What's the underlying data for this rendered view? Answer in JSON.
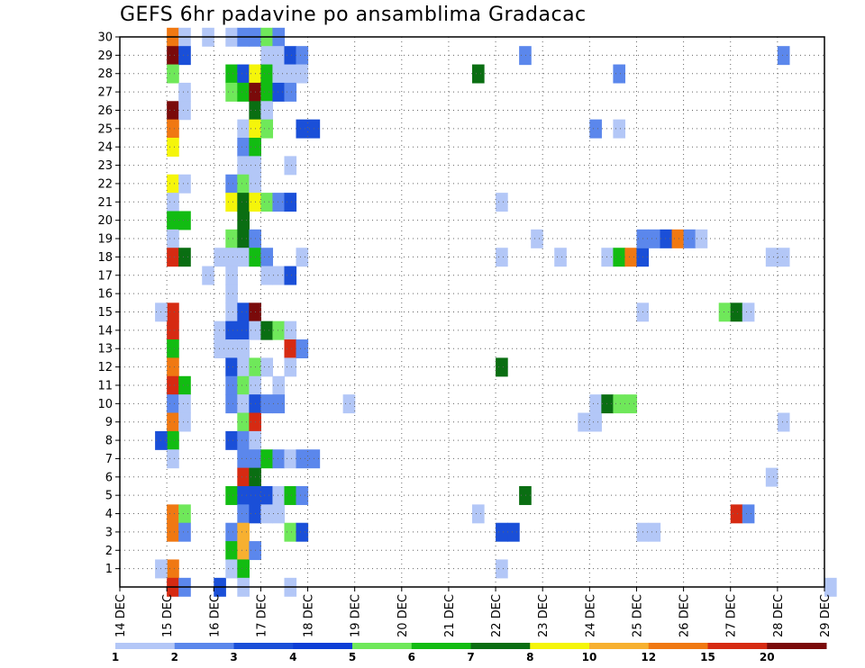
{
  "chart_data": {
    "type": "heatmap",
    "title": "GEFS 6hr padavine po ansamblima Gradacac",
    "xlabel": "",
    "ylabel": "",
    "x_tick_labels": [
      "14 DEC",
      "15 DEC",
      "16 DEC",
      "17 DEC",
      "18 DEC",
      "19 DEC",
      "20 DEC",
      "21 DEC",
      "22 DEC",
      "23 DEC",
      "24 DEC",
      "25 DEC",
      "26 DEC",
      "27 DEC",
      "28 DEC",
      "29 DEC"
    ],
    "y_tick_labels": [
      "1",
      "2",
      "3",
      "4",
      "5",
      "6",
      "7",
      "8",
      "9",
      "10",
      "11",
      "12",
      "13",
      "14",
      "15",
      "16",
      "17",
      "18",
      "19",
      "20",
      "21",
      "22",
      "23",
      "24",
      "25",
      "26",
      "27",
      "28",
      "29",
      "30"
    ],
    "x_range_days": [
      14,
      29
    ],
    "y_range": [
      0,
      30
    ],
    "grid": true,
    "colorbar": {
      "labels": [
        "1",
        "2",
        "3",
        "4",
        "5",
        "6",
        "7",
        "8",
        "10",
        "12",
        "15",
        "20"
      ],
      "colors": [
        "#b3c7f7",
        "#5b87ec",
        "#1a4fd8",
        "#0d3ed6",
        "#6fe85a",
        "#12bc12",
        "#0a6e12",
        "#f5f50a",
        "#f7b030",
        "#f07812",
        "#d62a12",
        "#7a0a0a"
      ]
    },
    "cells": [
      [
        15.0,
        30,
        9
      ],
      [
        15.0,
        29,
        11
      ],
      [
        15.0,
        28,
        4
      ],
      [
        15.0,
        26,
        11
      ],
      [
        15.0,
        25,
        9
      ],
      [
        15.0,
        24,
        7
      ],
      [
        15.0,
        22,
        7
      ],
      [
        15.0,
        21,
        0
      ],
      [
        15.0,
        20,
        5
      ],
      [
        15.0,
        19,
        0
      ],
      [
        15.0,
        18,
        10
      ],
      [
        15.0,
        15,
        10
      ],
      [
        15.0,
        14,
        10
      ],
      [
        15.0,
        13,
        5
      ],
      [
        15.0,
        12,
        9
      ],
      [
        15.0,
        11,
        10
      ],
      [
        15.0,
        10,
        1
      ],
      [
        15.0,
        9,
        9
      ],
      [
        15.0,
        8,
        5
      ],
      [
        15.0,
        7,
        0
      ],
      [
        15.0,
        4,
        9
      ],
      [
        15.0,
        3,
        9
      ],
      [
        15.0,
        1,
        9
      ],
      [
        15.0,
        0,
        10
      ],
      [
        15.25,
        30,
        0
      ],
      [
        15.25,
        29,
        2
      ],
      [
        15.25,
        27,
        0
      ],
      [
        15.25,
        26,
        0
      ],
      [
        15.25,
        22,
        0
      ],
      [
        15.25,
        20,
        5
      ],
      [
        15.25,
        18,
        6
      ],
      [
        15.25,
        11,
        5
      ],
      [
        15.25,
        10,
        0
      ],
      [
        15.25,
        9,
        0
      ],
      [
        15.25,
        4,
        4
      ],
      [
        15.25,
        3,
        1
      ],
      [
        15.25,
        0,
        1
      ],
      [
        14.75,
        15,
        0
      ],
      [
        14.75,
        8,
        2
      ],
      [
        14.75,
        1,
        0
      ],
      [
        15.75,
        30,
        0
      ],
      [
        15.75,
        17,
        0
      ],
      [
        16.0,
        18,
        0
      ],
      [
        16.0,
        14,
        0
      ],
      [
        16.0,
        13,
        0
      ],
      [
        16.0,
        0,
        2
      ],
      [
        16.25,
        30,
        0
      ],
      [
        16.25,
        28,
        5
      ],
      [
        16.25,
        27,
        4
      ],
      [
        16.25,
        22,
        1
      ],
      [
        16.25,
        21,
        7
      ],
      [
        16.25,
        19,
        4
      ],
      [
        16.25,
        18,
        0
      ],
      [
        16.25,
        17,
        0
      ],
      [
        16.25,
        16,
        0
      ],
      [
        16.25,
        15,
        0
      ],
      [
        16.25,
        14,
        2
      ],
      [
        16.25,
        13,
        0
      ],
      [
        16.25,
        12,
        2
      ],
      [
        16.25,
        11,
        1
      ],
      [
        16.25,
        10,
        1
      ],
      [
        16.25,
        8,
        2
      ],
      [
        16.25,
        5,
        5
      ],
      [
        16.25,
        3,
        1
      ],
      [
        16.25,
        2,
        5
      ],
      [
        16.25,
        1,
        0
      ],
      [
        16.5,
        30,
        1
      ],
      [
        16.5,
        28,
        2
      ],
      [
        16.5,
        27,
        5
      ],
      [
        16.5,
        25,
        0
      ],
      [
        16.5,
        24,
        1
      ],
      [
        16.5,
        23,
        0
      ],
      [
        16.5,
        22,
        4
      ],
      [
        16.5,
        21,
        6
      ],
      [
        16.5,
        20,
        6
      ],
      [
        16.5,
        19,
        6
      ],
      [
        16.5,
        18,
        0
      ],
      [
        16.5,
        15,
        2
      ],
      [
        16.5,
        14,
        2
      ],
      [
        16.5,
        13,
        0
      ],
      [
        16.5,
        12,
        0
      ],
      [
        16.5,
        11,
        4
      ],
      [
        16.5,
        10,
        0
      ],
      [
        16.5,
        9,
        4
      ],
      [
        16.5,
        8,
        1
      ],
      [
        16.5,
        7,
        1
      ],
      [
        16.5,
        6,
        10
      ],
      [
        16.5,
        5,
        2
      ],
      [
        16.5,
        4,
        1
      ],
      [
        16.5,
        3,
        8
      ],
      [
        16.5,
        2,
        8
      ],
      [
        16.5,
        1,
        5
      ],
      [
        16.5,
        0,
        0
      ],
      [
        16.75,
        30,
        1
      ],
      [
        16.75,
        28,
        7
      ],
      [
        16.75,
        27,
        11
      ],
      [
        16.75,
        26,
        6
      ],
      [
        16.75,
        25,
        7
      ],
      [
        16.75,
        24,
        5
      ],
      [
        16.75,
        23,
        0
      ],
      [
        16.75,
        22,
        0
      ],
      [
        16.75,
        21,
        7
      ],
      [
        16.75,
        19,
        1
      ],
      [
        16.75,
        18,
        5
      ],
      [
        16.75,
        15,
        11
      ],
      [
        16.75,
        14,
        0
      ],
      [
        16.75,
        12,
        4
      ],
      [
        16.75,
        11,
        0
      ],
      [
        16.75,
        10,
        2
      ],
      [
        16.75,
        9,
        10
      ],
      [
        16.75,
        8,
        0
      ],
      [
        16.75,
        7,
        1
      ],
      [
        16.75,
        6,
        6
      ],
      [
        16.75,
        5,
        2
      ],
      [
        16.75,
        4,
        2
      ],
      [
        16.75,
        2,
        1
      ],
      [
        17.0,
        30,
        4
      ],
      [
        17.0,
        29,
        0
      ],
      [
        17.0,
        28,
        5
      ],
      [
        17.0,
        27,
        5
      ],
      [
        17.0,
        26,
        0
      ],
      [
        17.0,
        25,
        4
      ],
      [
        17.0,
        21,
        4
      ],
      [
        17.0,
        18,
        1
      ],
      [
        17.0,
        17,
        0
      ],
      [
        17.0,
        14,
        6
      ],
      [
        17.0,
        12,
        0
      ],
      [
        17.0,
        10,
        1
      ],
      [
        17.0,
        7,
        5
      ],
      [
        17.0,
        5,
        2
      ],
      [
        17.0,
        4,
        0
      ],
      [
        17.25,
        30,
        1
      ],
      [
        17.25,
        29,
        0
      ],
      [
        17.25,
        28,
        0
      ],
      [
        17.25,
        27,
        2
      ],
      [
        17.25,
        21,
        1
      ],
      [
        17.25,
        17,
        0
      ],
      [
        17.25,
        14,
        4
      ],
      [
        17.25,
        11,
        0
      ],
      [
        17.25,
        10,
        1
      ],
      [
        17.25,
        7,
        1
      ],
      [
        17.25,
        5,
        0
      ],
      [
        17.25,
        4,
        0
      ],
      [
        17.5,
        29,
        2
      ],
      [
        17.5,
        28,
        0
      ],
      [
        17.5,
        27,
        1
      ],
      [
        17.5,
        23,
        0
      ],
      [
        17.5,
        21,
        2
      ],
      [
        17.5,
        17,
        2
      ],
      [
        17.5,
        14,
        0
      ],
      [
        17.5,
        13,
        10
      ],
      [
        17.5,
        12,
        0
      ],
      [
        17.5,
        7,
        0
      ],
      [
        17.5,
        5,
        5
      ],
      [
        17.5,
        3,
        4
      ],
      [
        17.5,
        0,
        0
      ],
      [
        17.75,
        29,
        1
      ],
      [
        17.75,
        28,
        0
      ],
      [
        17.75,
        25,
        2
      ],
      [
        17.75,
        18,
        0
      ],
      [
        17.75,
        13,
        1
      ],
      [
        17.75,
        7,
        1
      ],
      [
        17.75,
        5,
        1
      ],
      [
        17.75,
        3,
        2
      ],
      [
        18.0,
        25,
        2
      ],
      [
        18.0,
        7,
        1
      ],
      [
        18.75,
        10,
        0
      ],
      [
        21.5,
        28,
        6
      ],
      [
        21.5,
        4,
        0
      ],
      [
        22.0,
        21,
        0
      ],
      [
        22.0,
        18,
        0
      ],
      [
        22.0,
        12,
        6
      ],
      [
        22.0,
        3,
        2
      ],
      [
        22.0,
        1,
        0
      ],
      [
        22.25,
        3,
        2
      ],
      [
        22.5,
        29,
        1
      ],
      [
        22.5,
        5,
        6
      ],
      [
        22.75,
        19,
        0
      ],
      [
        23.25,
        18,
        0
      ],
      [
        23.75,
        9,
        0
      ],
      [
        24.0,
        25,
        1
      ],
      [
        24.0,
        10,
        0
      ],
      [
        24.0,
        9,
        0
      ],
      [
        24.25,
        18,
        0
      ],
      [
        24.25,
        10,
        6
      ],
      [
        24.5,
        28,
        1
      ],
      [
        24.5,
        25,
        0
      ],
      [
        24.5,
        18,
        5
      ],
      [
        24.5,
        10,
        4
      ],
      [
        24.75,
        18,
        9
      ],
      [
        24.75,
        10,
        4
      ],
      [
        25.0,
        18,
        2
      ],
      [
        25.0,
        15,
        0
      ],
      [
        25.0,
        3,
        0
      ],
      [
        25.25,
        3,
        0
      ],
      [
        25.0,
        19,
        1
      ],
      [
        25.25,
        19,
        1
      ],
      [
        25.5,
        19,
        2
      ],
      [
        25.75,
        19,
        9
      ],
      [
        26.0,
        19,
        1
      ],
      [
        26.25,
        19,
        0
      ],
      [
        26.75,
        15,
        4
      ],
      [
        27.0,
        15,
        6
      ],
      [
        27.25,
        15,
        0
      ],
      [
        27.0,
        4,
        10
      ],
      [
        27.25,
        4,
        1
      ],
      [
        27.75,
        6,
        0
      ],
      [
        28.0,
        29,
        1
      ],
      [
        28.0,
        18,
        0
      ],
      [
        28.0,
        9,
        0
      ],
      [
        27.75,
        18,
        0
      ],
      [
        29.0,
        0,
        0
      ]
    ]
  }
}
